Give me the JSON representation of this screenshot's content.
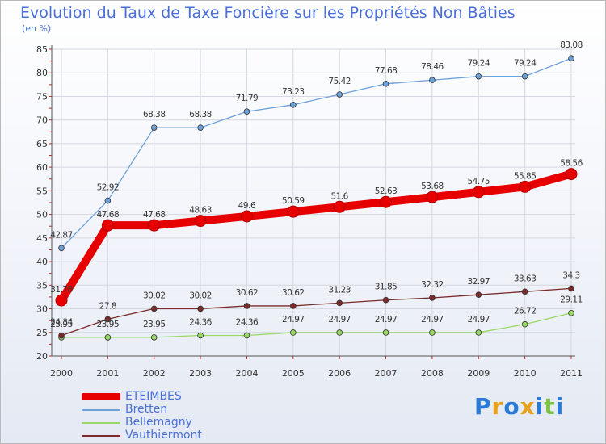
{
  "chart_data": {
    "type": "line",
    "title": "Evolution du Taux de Taxe Foncière sur les Propriétés Non Bâties",
    "subtitle": "(en %)",
    "categories": [
      "2000",
      "2001",
      "2002",
      "2003",
      "2004",
      "2005",
      "2006",
      "2007",
      "2008",
      "2009",
      "2010",
      "2011"
    ],
    "ylim": [
      20,
      85
    ],
    "yticks": [
      20,
      25,
      30,
      35,
      40,
      45,
      50,
      55,
      60,
      65,
      70,
      75,
      80,
      85
    ],
    "series": [
      {
        "name": "ETEIMBES",
        "color": "#e60000",
        "values": [
          31.78,
          47.68,
          47.68,
          48.63,
          49.6,
          50.59,
          51.6,
          52.63,
          53.68,
          54.75,
          55.85,
          58.56
        ],
        "labels": [
          "31.78",
          "47.68",
          "47.68",
          "48.63",
          "49.6",
          "50.59",
          "51.6",
          "52.63",
          "53.68",
          "54.75",
          "55.85",
          "58.56"
        ]
      },
      {
        "name": "Bretten",
        "color": "#6ea0d8",
        "values": [
          42.87,
          52.92,
          68.38,
          68.38,
          71.79,
          73.23,
          75.42,
          77.68,
          78.46,
          79.24,
          79.24,
          83.08
        ],
        "labels": [
          "42.87",
          "52.92",
          "68.38",
          "68.38",
          "71.79",
          "73.23",
          "75.42",
          "77.68",
          "78.46",
          "79.24",
          "79.24",
          "83.08"
        ]
      },
      {
        "name": "Bellemagny",
        "color": "#99d866",
        "values": [
          23.95,
          23.95,
          23.95,
          24.36,
          24.36,
          24.97,
          24.97,
          24.97,
          24.97,
          24.97,
          26.72,
          29.11
        ],
        "labels": [
          "23.95",
          "23.95",
          "23.95",
          "24.36",
          "24.36",
          "24.97",
          "24.97",
          "24.97",
          "24.97",
          "24.97",
          "26.72",
          "29.11"
        ]
      },
      {
        "name": "Vauthiermont",
        "color": "#7a2a2a",
        "values": [
          24.34,
          27.8,
          30.02,
          30.02,
          30.62,
          30.62,
          31.23,
          31.85,
          32.32,
          32.97,
          33.63,
          34.3
        ],
        "labels": [
          "24.34",
          "27.8",
          "30.02",
          "30.02",
          "30.62",
          "30.62",
          "31.23",
          "31.85",
          "32.32",
          "32.97",
          "33.63",
          "34.3"
        ]
      }
    ]
  },
  "legend": {
    "items": [
      {
        "label": "ETEIMBES",
        "color": "#e60000"
      },
      {
        "label": "Bretten",
        "color": "#6ea0d8"
      },
      {
        "label": "Bellemagny",
        "color": "#99d866"
      },
      {
        "label": "Vauthiermont",
        "color": "#7a2a2a"
      }
    ]
  },
  "logo": {
    "letters": [
      "P",
      "r",
      "o",
      "x",
      "i",
      "t",
      "i"
    ],
    "colors": [
      "#2a7bd8",
      "#e8a020",
      "#2a7bd8",
      "#e8a020",
      "#2a7bd8",
      "#7cc243",
      "#2a7bd8"
    ]
  }
}
